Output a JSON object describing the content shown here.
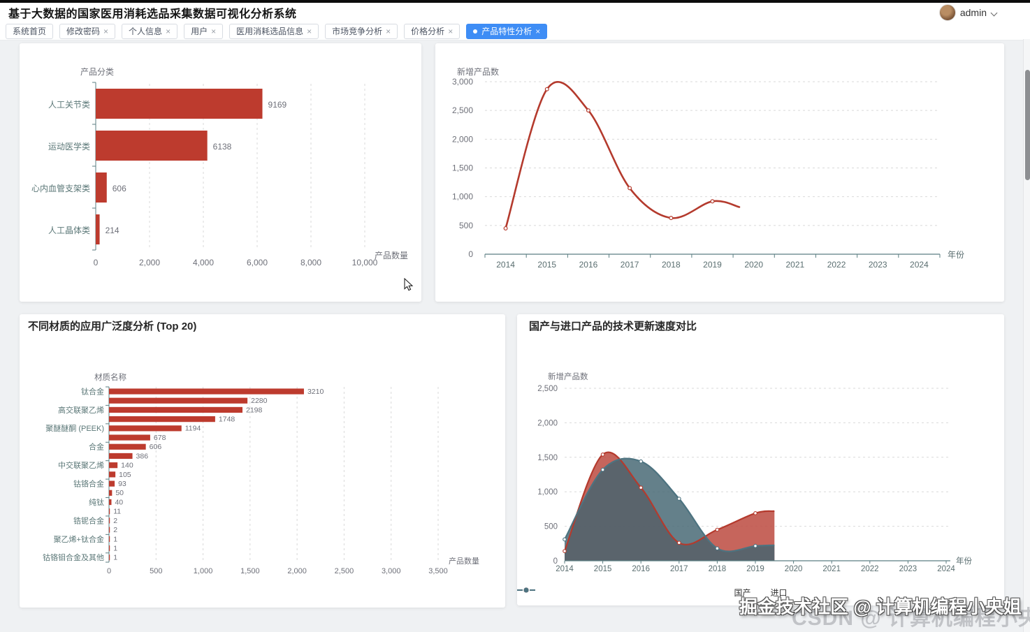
{
  "header": {
    "title": "基于大数据的国家医用消耗选品采集数据可视化分析系统",
    "user": "admin"
  },
  "tabs": [
    {
      "label": "系统首页",
      "closable": false,
      "active": false
    },
    {
      "label": "修改密码",
      "closable": true,
      "active": false
    },
    {
      "label": "个人信息",
      "closable": true,
      "active": false
    },
    {
      "label": "用户",
      "closable": true,
      "active": false
    },
    {
      "label": "医用消耗选品信息",
      "closable": true,
      "active": false
    },
    {
      "label": "市场竞争分析",
      "closable": true,
      "active": false
    },
    {
      "label": "价格分析",
      "closable": true,
      "active": false
    },
    {
      "label": "产品特性分析",
      "closable": true,
      "active": true
    }
  ],
  "panels": {
    "material_title": "不同材质的应用广泛度分析 (Top 20)",
    "compare_title": "国产与进口产品的技术更新速度对比"
  },
  "colors": {
    "accent_blue": "#3e8df5",
    "bar_red": "#bd3b2e",
    "line_red": "#b43a2d",
    "teal": "#4d7380",
    "red_fill": "rgba(188,74,64,0.85)",
    "teal_fill": "rgba(66,100,112,0.82)",
    "axis": "#5b7e82",
    "grid": "#d9d9d9",
    "tick_text": "#6e7079",
    "cat_text": "#5c7878"
  },
  "chart_data": [
    {
      "type": "bar",
      "orientation": "horizontal",
      "yaxis_name": "产品分类",
      "xaxis_name": "产品数量",
      "categories": [
        "人工关节类",
        "运动医学类",
        "心内血管支架类",
        "人工晶体类"
      ],
      "values": [
        9169,
        6138,
        606,
        214
      ],
      "xticks": [
        0,
        2000,
        4000,
        6000,
        8000,
        10000
      ],
      "bar_scale_max": 14800,
      "grid": "dashed-vertical"
    },
    {
      "type": "line",
      "yaxis_name": "新增产品数",
      "xaxis_name": "年份",
      "x": [
        2014,
        2015,
        2016,
        2017,
        2018,
        2019,
        2019.65
      ],
      "values": [
        450,
        2870,
        2500,
        1150,
        630,
        920,
        820
      ],
      "xticks": [
        2014,
        2015,
        2016,
        2017,
        2018,
        2019,
        2020,
        2021,
        2022,
        2023,
        2024
      ],
      "yticks": [
        0,
        500,
        1000,
        1500,
        2000,
        2500,
        3000
      ],
      "ylim": [
        0,
        3000
      ],
      "smooth": true,
      "grid": "dashed-horizontal"
    },
    {
      "type": "bar",
      "orientation": "horizontal",
      "yaxis_name": "材质名称",
      "xaxis_name": "产品数量",
      "categories": [
        "钛合金",
        "",
        "高交联聚乙烯",
        "",
        "聚醚醚酮 (PEEK)",
        "",
        "合金",
        "",
        "中交联聚乙烯",
        "",
        "钴铬合金",
        "",
        "纯钛",
        "",
        "锆铌合金",
        "",
        "聚乙烯+钛合金",
        "",
        "钴铬钼合金及其他"
      ],
      "values": [
        3210,
        2280,
        2198,
        1748,
        1194,
        678,
        606,
        386,
        140,
        105,
        93,
        50,
        40,
        11,
        2,
        2,
        1,
        1,
        1
      ],
      "xticks": [
        0,
        500,
        1000,
        1500,
        2000,
        2500,
        3000,
        3500
      ],
      "bar_scale_max": 5420,
      "grid": "dashed-vertical"
    },
    {
      "type": "area",
      "yaxis_name": "新增产品数",
      "xaxis_name": "年份",
      "x": [
        2014,
        2015,
        2016,
        2017,
        2018,
        2019
      ],
      "series": [
        {
          "name": "国产",
          "values": [
            140,
            1540,
            1060,
            260,
            450,
            690
          ]
        },
        {
          "name": "进口",
          "values": [
            310,
            1320,
            1440,
            900,
            180,
            215
          ]
        }
      ],
      "end_values": [
        720,
        225
      ],
      "truncate_x": 2019.5,
      "xticks": [
        2014,
        2015,
        2016,
        2017,
        2018,
        2019,
        2020,
        2021,
        2022,
        2023,
        2024
      ],
      "yticks": [
        0,
        500,
        1000,
        1500,
        2000,
        2500
      ],
      "ylim": [
        0,
        2500
      ],
      "smooth": true,
      "legend": [
        "国产",
        "进口"
      ],
      "legend_position": "bottom",
      "grid": "dashed-horizontal"
    }
  ],
  "watermark": {
    "line1": "掘金技术社区 @ 计算机编程小央姐",
    "line2": "CSDN @ 计算机编程小央姐"
  }
}
